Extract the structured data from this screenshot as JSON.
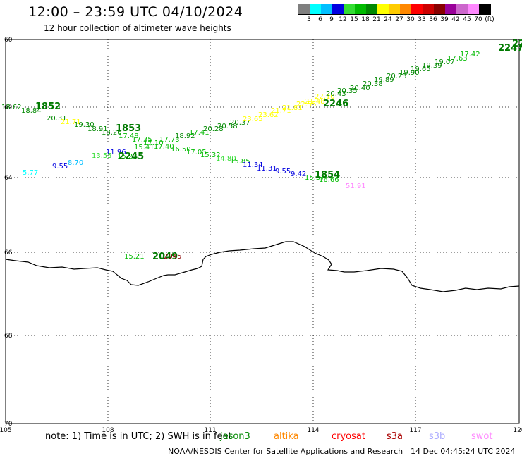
{
  "header": {
    "title": "12:00 – 23:59 UTC 04/10/2024",
    "subtitle": "12 hour collection of altimeter wave heights"
  },
  "legend": {
    "unit": "(ft)",
    "bins": [
      {
        "label": "3",
        "color": "#7f7f7f"
      },
      {
        "label": "6",
        "color": "#00ffff"
      },
      {
        "label": "9",
        "color": "#00bfff"
      },
      {
        "label": "12",
        "color": "#0000e0"
      },
      {
        "label": "15",
        "color": "#33dd33"
      },
      {
        "label": "18",
        "color": "#00bb00"
      },
      {
        "label": "21",
        "color": "#008800"
      },
      {
        "label": "24",
        "color": "#ffff00"
      },
      {
        "label": "27",
        "color": "#ffcc00"
      },
      {
        "label": "30",
        "color": "#ff8800"
      },
      {
        "label": "33",
        "color": "#ff0000"
      },
      {
        "label": "36",
        "color": "#cc0000"
      },
      {
        "label": "39",
        "color": "#880000"
      },
      {
        "label": "42",
        "color": "#990099"
      },
      {
        "label": "45",
        "color": "#cc66cc"
      },
      {
        "label": "70",
        "color": "#ff88ff"
      },
      {
        "label": "",
        "color": "#000000"
      }
    ]
  },
  "axes": {
    "lat_labels": [
      "60",
      "62",
      "64",
      "66",
      "68",
      "70"
    ],
    "lon_labels": [
      "105",
      "108",
      "111",
      "114",
      "117",
      "120"
    ]
  },
  "passes": [
    "1852",
    "1853",
    "2245",
    "2246",
    "2247",
    "1854",
    "2049"
  ],
  "wave_labels": {
    "track_1852_1854": [
      "18.62",
      "18.84",
      "20.31",
      "21.71",
      "19.30",
      "18.91",
      "18.26",
      "17.48",
      "17.35",
      "17.10",
      "17.73",
      "18.92",
      "17.41",
      "20.28",
      "20.58",
      "20.37",
      "23.65",
      "23.62",
      "21.71",
      "21.81",
      "22.55",
      "21.48",
      "22.10",
      "20.43",
      "20.35",
      "20.40",
      "20.38",
      "19.89",
      "20.25",
      "19.90",
      "19.65",
      "19.39",
      "19.07",
      "17.63",
      "17.42"
    ],
    "track_2245": [
      "5.77",
      "9.55",
      "8.70",
      "13.55",
      "11.96",
      "15.23",
      "15.41",
      "17.40",
      "16.50",
      "17.05",
      "15.32",
      "14.80",
      "15.85",
      "11.34",
      "11.31",
      "9.55",
      "9.42",
      "15.57",
      "16.66",
      "51.91"
    ],
    "track_2049": [
      "15.21",
      "2049",
      "2045"
    ],
    "mixed": [
      "18.62"
    ]
  },
  "footer": {
    "note": "note: 1) Time is in UTC; 2) SWH is in feet",
    "satellites": [
      {
        "name": "jason3",
        "color": "#008800"
      },
      {
        "name": "altika",
        "color": "#ff8800"
      },
      {
        "name": "cryosat",
        "color": "#ff0000"
      },
      {
        "name": "s3a",
        "color": "#aa0000"
      },
      {
        "name": "s3b",
        "color": "#aaaaff"
      },
      {
        "name": "swot",
        "color": "#ff88ff"
      }
    ],
    "credit": "NOAA/NESDIS Center for Satellite Applications and Research",
    "timestamp": "14 Dec 04:45:24 UTC 2024"
  }
}
